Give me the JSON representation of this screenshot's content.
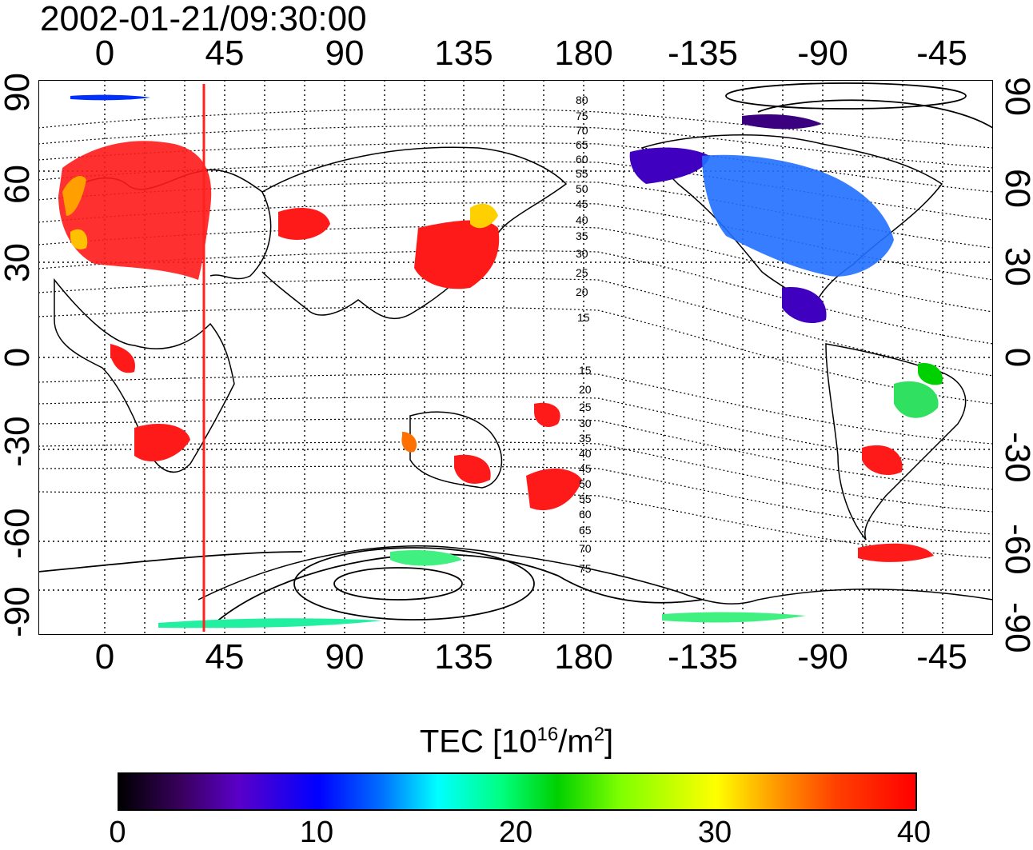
{
  "timestamp": "2002-01-21/09:30:00",
  "lon_labels": [
    "0",
    "45",
    "90",
    "135",
    "180",
    "-135",
    "-90",
    "-45"
  ],
  "lat_labels": [
    "90",
    "60",
    "30",
    "0",
    "-30",
    "-60",
    "-90"
  ],
  "contour_labels_north": [
    "80",
    "75",
    "70",
    "65",
    "60",
    "55",
    "50",
    "45",
    "40",
    "35",
    "30",
    "25",
    "20",
    "15"
  ],
  "contour_labels_south": [
    "15",
    "20",
    "25",
    "30",
    "35",
    "40",
    "45",
    "50",
    "55",
    "60",
    "65",
    "70",
    "75"
  ],
  "colorbar": {
    "title": "TEC  [10",
    "title_sup": "16",
    "title_mid": "/m",
    "title_sup2": "2",
    "title_end": "]",
    "ticks": [
      "0",
      "10",
      "20",
      "30",
      "40"
    ],
    "min": 0,
    "max": 40
  },
  "colors": {
    "terminator_line": "#ff2020",
    "high_tec": "#ff1a1a",
    "low_tec": "#2040ff"
  }
}
